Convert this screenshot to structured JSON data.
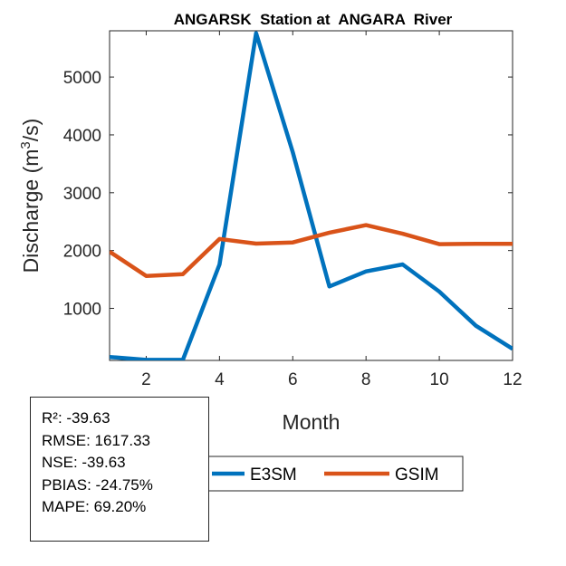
{
  "chart_data": {
    "type": "line",
    "title": "ANGARSK  Station at  ANGARA  River",
    "xlabel": "Month",
    "ylabel": "Discharge (m3/s)",
    "ylabel_parts": {
      "before": "Discharge (m",
      "sup": "3",
      "after": "/s)"
    },
    "xlim": [
      1,
      12
    ],
    "ylim": [
      100,
      5800
    ],
    "xticks": [
      2,
      4,
      6,
      8,
      10,
      12
    ],
    "yticks": [
      1000,
      2000,
      3000,
      4000,
      5000
    ],
    "x": [
      1,
      2,
      3,
      4,
      5,
      6,
      7,
      8,
      9,
      10,
      11,
      12
    ],
    "series": [
      {
        "name": "E3SM",
        "color": "#0072BD",
        "values": [
          160,
          110,
          110,
          1760,
          5760,
          3700,
          1380,
          1640,
          1760,
          1290,
          700,
          300
        ]
      },
      {
        "name": "GSIM",
        "color": "#D95319",
        "values": [
          1980,
          1560,
          1590,
          2200,
          2120,
          2140,
          2310,
          2440,
          2290,
          2110,
          2115,
          2115
        ]
      }
    ],
    "legend_position": "bottom"
  },
  "stats": [
    "R²: -39.63",
    "RMSE: 1617.33",
    "NSE: -39.63",
    "PBIAS: -24.75%",
    "MAPE: 69.20%"
  ]
}
